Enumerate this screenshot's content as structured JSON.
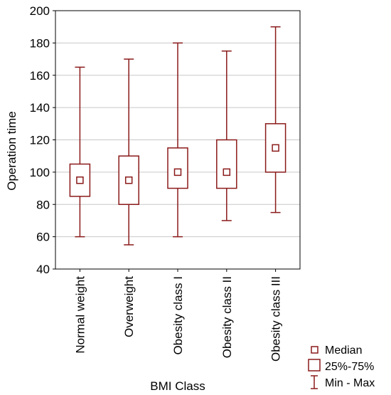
{
  "chart_data": {
    "type": "boxplot",
    "title": "",
    "xlabel": "BMI Class",
    "ylabel": "Operation time",
    "ylim": [
      40,
      200
    ],
    "yticks": [
      40,
      60,
      80,
      100,
      120,
      140,
      160,
      180,
      200
    ],
    "grid": true,
    "categories": [
      "Normal weight",
      "Overweight",
      "Obesity class I",
      "Obesity class II",
      "Obesity class III"
    ],
    "series": [
      {
        "category": "Normal weight",
        "min": 60,
        "q1": 85,
        "median": 95,
        "q3": 105,
        "max": 165
      },
      {
        "category": "Overweight",
        "min": 55,
        "q1": 80,
        "median": 95,
        "q3": 110,
        "max": 170
      },
      {
        "category": "Obesity class I",
        "min": 60,
        "q1": 90,
        "median": 100,
        "q3": 115,
        "max": 180
      },
      {
        "category": "Obesity class II",
        "min": 70,
        "q1": 90,
        "median": 100,
        "q3": 120,
        "max": 175
      },
      {
        "category": "Obesity class III",
        "min": 75,
        "q1": 100,
        "median": 115,
        "q3": 130,
        "max": 190
      }
    ],
    "legend": {
      "position": "bottom-right",
      "items": [
        "Median",
        "25%-75%",
        "Min - Max"
      ]
    },
    "colors": {
      "box": "#8b1a1a",
      "grid": "#c8c8c8",
      "axis": "#000000"
    }
  }
}
